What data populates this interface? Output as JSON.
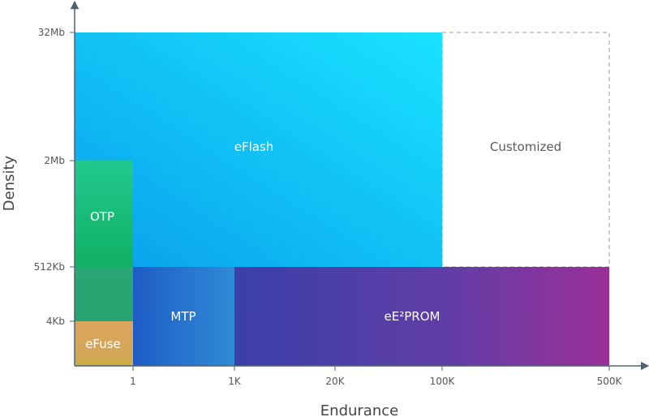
{
  "chart_data": {
    "type": "area",
    "xlabel": "Endurance",
    "ylabel": "Density",
    "x_ticks": [
      "1",
      "1K",
      "20K",
      "100K",
      "500K"
    ],
    "y_ticks": [
      "4Kb",
      "512Kb",
      "2Mb",
      "32Mb"
    ],
    "regions": [
      {
        "name": "eFlash",
        "x_range": [
          "0",
          "100K"
        ],
        "y_range": [
          "512Kb",
          "32Mb"
        ],
        "colors": [
          "#0aa0ee",
          "#18e0ff"
        ]
      },
      {
        "name": "Customized",
        "x_range": [
          "100K",
          "500K"
        ],
        "y_range": [
          "512Kb",
          "32Mb"
        ],
        "style": "dashed-outline"
      },
      {
        "name": "OTP",
        "x_range": [
          "0",
          "1"
        ],
        "y_range": [
          "512Kb",
          "2Mb"
        ],
        "colors": [
          "#1fc48a",
          "#12b266"
        ]
      },
      {
        "name": "eFuse",
        "x_range": [
          "0",
          "1"
        ],
        "y_range": [
          "0",
          "4Kb"
        ],
        "colors": [
          "#e0a85a",
          "#c9a84a"
        ]
      },
      {
        "name": "MTP",
        "x_range": [
          "1",
          "1K"
        ],
        "y_range": [
          "0",
          "512Kb"
        ],
        "colors": [
          "#1e5ec8",
          "#2f8fd8"
        ]
      },
      {
        "name": "eE²PROM",
        "x_range": [
          "1K",
          "500K"
        ],
        "y_range": [
          "0",
          "512Kb"
        ],
        "colors": [
          "#3a48b0",
          "#9a2f98"
        ]
      }
    ]
  }
}
